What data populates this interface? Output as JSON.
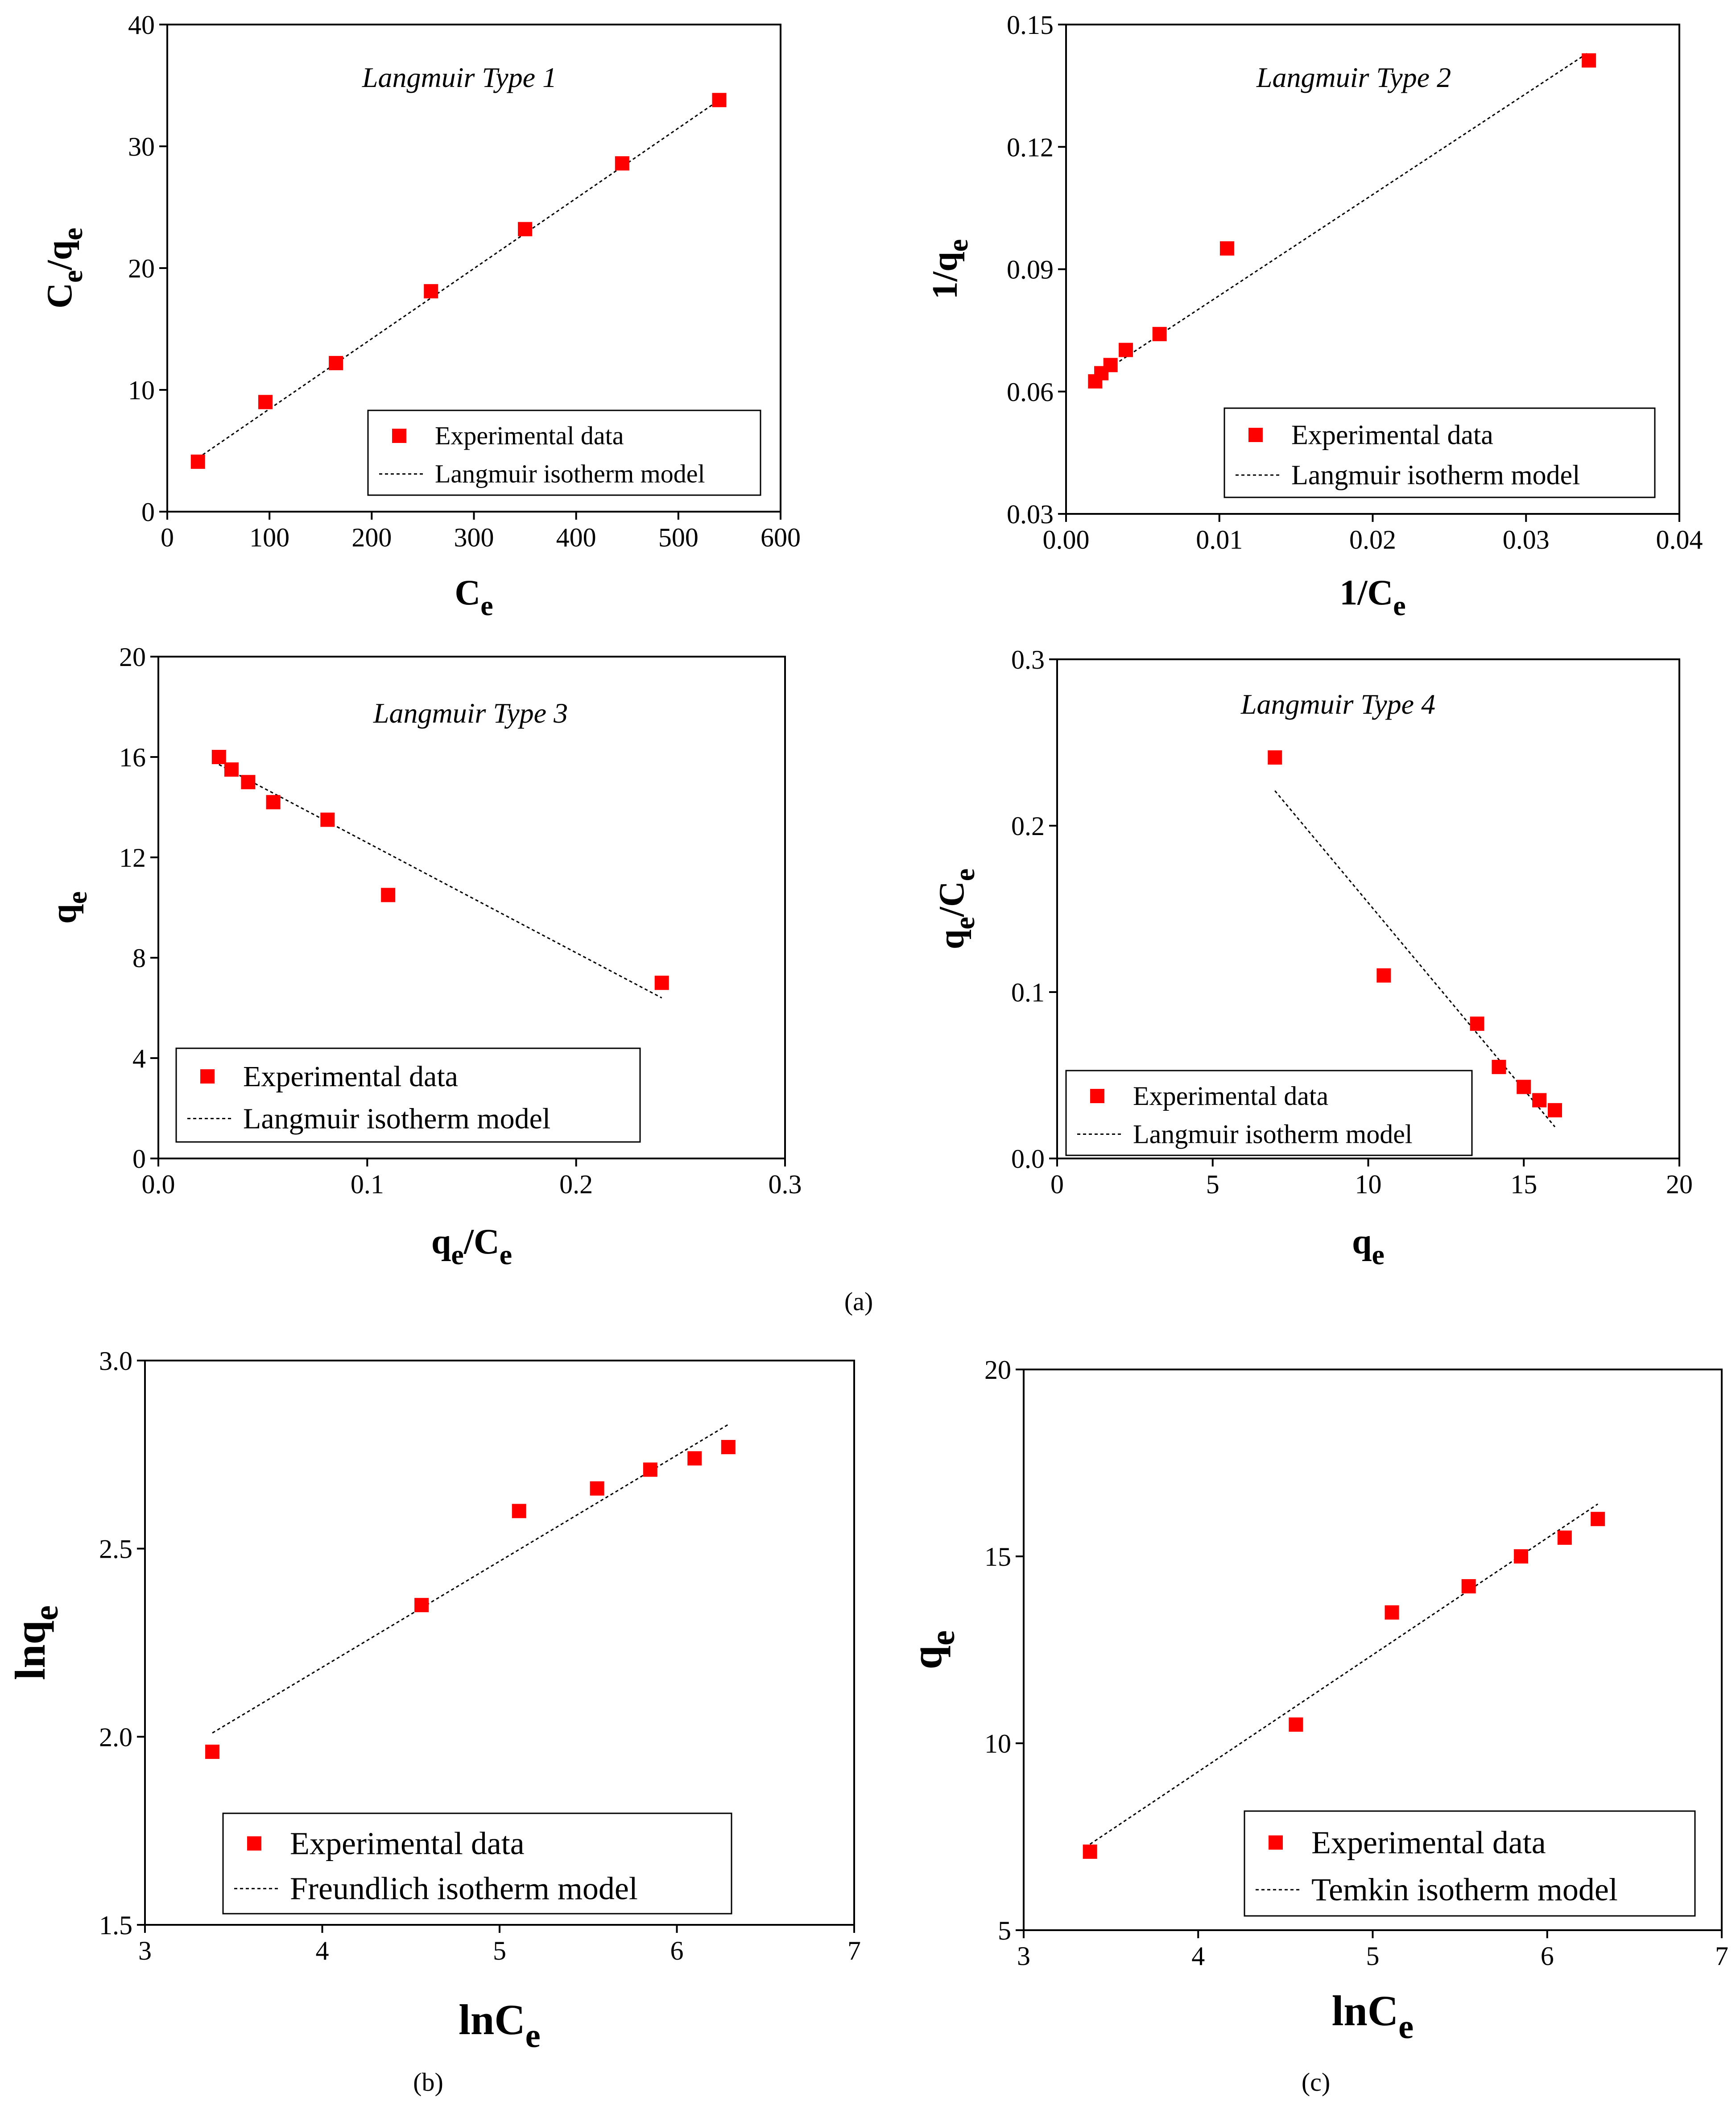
{
  "colors": {
    "marker": "#ff0000",
    "axis": "#000000",
    "background": "#ffffff"
  },
  "panel_labels": {
    "a": "(a)",
    "b": "(b)",
    "c": "(c)"
  },
  "chart_data": [
    {
      "id": "langmuir-type-1",
      "type": "scatter",
      "title": "Langmuir Type 1",
      "xlabel": {
        "main": "C",
        "sub": "e"
      },
      "ylabel": {
        "parts": [
          {
            "t": "C"
          },
          {
            "t": "e",
            "sub": true
          },
          {
            "t": "/q"
          },
          {
            "t": "e",
            "sub": true
          }
        ]
      },
      "xlim": [
        0,
        600
      ],
      "ylim": [
        0,
        40
      ],
      "xticks": [
        0,
        100,
        200,
        300,
        400,
        500,
        600
      ],
      "xtick_labels": [
        "0",
        "100",
        "200",
        "300",
        "400",
        "500",
        "600"
      ],
      "yticks": [
        0,
        10,
        20,
        30,
        40
      ],
      "ytick_labels": [
        "0",
        "10",
        "20",
        "30",
        "40"
      ],
      "series": [
        {
          "name": "Experimental data",
          "kind": "points",
          "x": [
            30,
            96,
            165,
            258,
            350,
            445,
            540
          ],
          "y": [
            4.1,
            9.0,
            12.2,
            18.1,
            23.2,
            28.6,
            33.8
          ]
        },
        {
          "name": "Langmuir isotherm model",
          "kind": "fit",
          "x": [
            30,
            540
          ],
          "y": [
            4.4,
            33.8
          ]
        }
      ],
      "legend": [
        "Experimental data",
        "Langmuir isotherm model"
      ],
      "legend_position": "bottom-right"
    },
    {
      "id": "langmuir-type-2",
      "type": "scatter",
      "title": "Langmuir Type 2",
      "xlabel": {
        "main": "1/C",
        "sub": "e"
      },
      "ylabel": {
        "parts": [
          {
            "t": "1/q"
          },
          {
            "t": "e",
            "sub": true
          }
        ]
      },
      "xlim": [
        0,
        0.04
      ],
      "ylim": [
        0.03,
        0.15
      ],
      "xticks": [
        0,
        0.01,
        0.02,
        0.03,
        0.04
      ],
      "xtick_labels": [
        "0.00",
        "0.01",
        "0.02",
        "0.03",
        "0.04"
      ],
      "yticks": [
        0.03,
        0.06,
        0.09,
        0.12,
        0.15
      ],
      "ytick_labels": [
        "0.03",
        "0.06",
        "0.09",
        "0.12",
        "0.15"
      ],
      "series": [
        {
          "name": "Experimental data",
          "kind": "points",
          "x": [
            0.0019,
            0.0023,
            0.0029,
            0.0039,
            0.0061,
            0.0105,
            0.0341
          ],
          "y": [
            0.0625,
            0.0645,
            0.0665,
            0.0702,
            0.0741,
            0.0951,
            0.1412
          ]
        },
        {
          "name": "Langmuir isotherm model",
          "kind": "fit",
          "x": [
            0.0019,
            0.0341
          ],
          "y": [
            0.0635,
            0.1432
          ]
        }
      ],
      "legend": [
        "Experimental data",
        "Langmuir isotherm model"
      ],
      "legend_position": "bottom-right"
    },
    {
      "id": "langmuir-type-3",
      "type": "scatter",
      "title": "Langmuir Type 3",
      "xlabel": {
        "main": "q",
        "sub": "e",
        "after": "/C",
        "sub2": "e"
      },
      "ylabel": {
        "parts": [
          {
            "t": "q"
          },
          {
            "t": "e",
            "sub": true
          }
        ]
      },
      "xlim": [
        0,
        0.3
      ],
      "ylim": [
        0,
        20
      ],
      "xticks": [
        0,
        0.1,
        0.2,
        0.3
      ],
      "xtick_labels": [
        "0.0",
        "0.1",
        "0.2",
        "0.3"
      ],
      "yticks": [
        0,
        4,
        8,
        12,
        16,
        20
      ],
      "ytick_labels": [
        "0",
        "4",
        "8",
        "12",
        "16",
        "20"
      ],
      "series": [
        {
          "name": "Experimental data",
          "kind": "points",
          "x": [
            0.029,
            0.035,
            0.043,
            0.055,
            0.081,
            0.11,
            0.241
          ],
          "y": [
            16.0,
            15.5,
            15.0,
            14.2,
            13.5,
            10.5,
            7.0
          ]
        },
        {
          "name": "Langmuir isotherm model",
          "kind": "fit",
          "x": [
            0.029,
            0.241
          ],
          "y": [
            15.7,
            6.4
          ]
        }
      ],
      "legend": [
        "Experimental data",
        "Langmuir isotherm model"
      ],
      "legend_position": "bottom-left"
    },
    {
      "id": "langmuir-type-4",
      "type": "scatter",
      "title": "Langmuir Type 4",
      "xlabel": {
        "main": "q",
        "sub": "e"
      },
      "ylabel": {
        "parts": [
          {
            "t": "q"
          },
          {
            "t": "e",
            "sub": true
          },
          {
            "t": "/C"
          },
          {
            "t": "e",
            "sub": true
          }
        ]
      },
      "xlim": [
        0,
        20
      ],
      "ylim": [
        0,
        0.3
      ],
      "xticks": [
        0,
        5,
        10,
        15,
        20
      ],
      "xtick_labels": [
        "0",
        "5",
        "10",
        "15",
        "20"
      ],
      "yticks": [
        0,
        0.1,
        0.2,
        0.3
      ],
      "ytick_labels": [
        "0.0",
        "0.1",
        "0.2",
        "0.3"
      ],
      "series": [
        {
          "name": "Experimental data",
          "kind": "points",
          "x": [
            7.0,
            10.5,
            13.5,
            14.2,
            15.0,
            15.5,
            16.0
          ],
          "y": [
            0.241,
            0.11,
            0.081,
            0.055,
            0.043,
            0.035,
            0.029
          ]
        },
        {
          "name": "Langmuir isotherm model",
          "kind": "fit",
          "x": [
            7.0,
            16.0
          ],
          "y": [
            0.221,
            0.019
          ]
        }
      ],
      "legend": [
        "Experimental data",
        "Langmuir isotherm model"
      ],
      "legend_position": "bottom-right"
    },
    {
      "id": "freundlich",
      "type": "scatter",
      "title": "",
      "xlabel": {
        "main": "lnC",
        "sub": "e"
      },
      "ylabel": {
        "parts": [
          {
            "t": "lnq"
          },
          {
            "t": "e",
            "sub": true
          }
        ]
      },
      "xlim": [
        3,
        7
      ],
      "ylim": [
        1.5,
        3.0
      ],
      "xticks": [
        3,
        4,
        5,
        6,
        7
      ],
      "xtick_labels": [
        "3",
        "4",
        "5",
        "6",
        "7"
      ],
      "yticks": [
        1.5,
        2.0,
        2.5,
        3.0
      ],
      "ytick_labels": [
        "1.5",
        "2.0",
        "2.5",
        "3.0"
      ],
      "series": [
        {
          "name": "Experimental data",
          "kind": "points",
          "x": [
            3.38,
            4.56,
            5.11,
            5.55,
            5.85,
            6.1,
            6.29
          ],
          "y": [
            1.96,
            2.35,
            2.6,
            2.66,
            2.71,
            2.74,
            2.77
          ]
        },
        {
          "name": "Freundlich isotherm model",
          "kind": "fit",
          "x": [
            3.38,
            6.29
          ],
          "y": [
            2.01,
            2.83
          ]
        }
      ],
      "legend": [
        "Experimental data",
        "Freundlich isotherm model"
      ],
      "legend_position": "bottom-right"
    },
    {
      "id": "temkin",
      "type": "scatter",
      "title": "",
      "xlabel": {
        "main": "lnC",
        "sub": "e"
      },
      "ylabel": {
        "parts": [
          {
            "t": "q"
          },
          {
            "t": "e",
            "sub": true
          }
        ]
      },
      "xlim": [
        3,
        7
      ],
      "ylim": [
        5,
        20
      ],
      "xticks": [
        3,
        4,
        5,
        6,
        7
      ],
      "xtick_labels": [
        "3",
        "4",
        "5",
        "6",
        "7"
      ],
      "yticks": [
        5,
        10,
        15,
        20
      ],
      "ytick_labels": [
        "5",
        "10",
        "15",
        "20"
      ],
      "series": [
        {
          "name": "Experimental data",
          "kind": "points",
          "x": [
            3.38,
            4.56,
            5.11,
            5.55,
            5.85,
            6.1,
            6.29
          ],
          "y": [
            7.1,
            10.5,
            13.5,
            14.2,
            15.0,
            15.5,
            16.0
          ]
        },
        {
          "name": "Temkin isotherm model",
          "kind": "fit",
          "x": [
            3.38,
            6.29
          ],
          "y": [
            7.3,
            16.4
          ]
        }
      ],
      "legend": [
        "Experimental data",
        "Temkin isotherm model"
      ],
      "legend_position": "bottom-right"
    }
  ]
}
